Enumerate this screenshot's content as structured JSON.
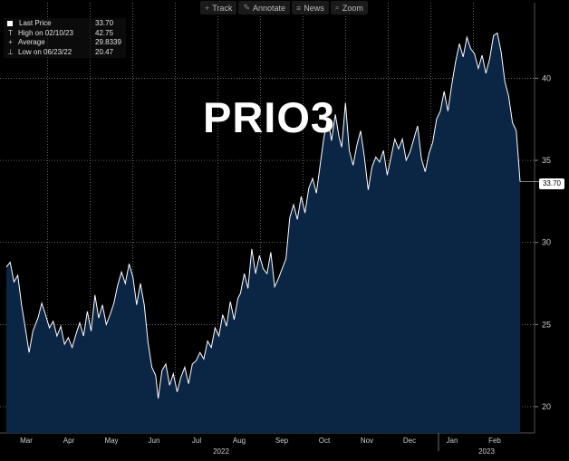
{
  "toolbar": {
    "items": [
      {
        "label": "Track",
        "icon": "crosshair-icon"
      },
      {
        "label": "Annotate",
        "icon": "pencil-icon"
      },
      {
        "label": "News",
        "icon": "news-icon"
      },
      {
        "label": "Zoom",
        "icon": "magnifier-icon"
      }
    ]
  },
  "legend": {
    "rows": [
      {
        "label": "Last Price",
        "value": "33.70",
        "icon": "square"
      },
      {
        "label": "High on 02/10/23",
        "value": "42.75",
        "icon": "T"
      },
      {
        "label": "Average",
        "value": "29.8339",
        "icon": "+"
      },
      {
        "label": "Low on 06/23/22",
        "value": "20.47",
        "icon": "⊥"
      }
    ]
  },
  "last_badge": "33.70",
  "chart_data": {
    "type": "area",
    "title": "PRIO3",
    "xlabel": "",
    "ylabel": "",
    "x_ticks": [
      "Mar",
      "Apr",
      "May",
      "Jun",
      "Jul",
      "Aug",
      "Sep",
      "Oct",
      "Nov",
      "Dec",
      "Jan",
      "Feb"
    ],
    "x_years": [
      "2022",
      "2023"
    ],
    "y_ticks": [
      20,
      25,
      30,
      35,
      40
    ],
    "ylim": [
      18.4,
      44.6
    ],
    "grid": true,
    "colors": {
      "line": "#ffffff",
      "fill": "#0b2545"
    },
    "series": [
      {
        "values": [
          [
            0,
            28.5
          ],
          [
            0.3,
            28.8
          ],
          [
            0.6,
            27.6
          ],
          [
            0.9,
            28.0
          ],
          [
            1.2,
            26.2
          ],
          [
            1.5,
            24.8
          ],
          [
            1.8,
            23.3
          ],
          [
            2.1,
            24.6
          ],
          [
            2.5,
            25.4
          ],
          [
            2.8,
            26.3
          ],
          [
            3.1,
            25.6
          ],
          [
            3.4,
            24.8
          ],
          [
            3.7,
            25.2
          ],
          [
            4.0,
            24.3
          ],
          [
            4.3,
            24.9
          ],
          [
            4.6,
            23.8
          ],
          [
            4.9,
            24.2
          ],
          [
            5.2,
            23.6
          ],
          [
            5.5,
            24.4
          ],
          [
            5.8,
            25.1
          ],
          [
            6.1,
            24.3
          ],
          [
            6.4,
            25.8
          ],
          [
            6.7,
            24.6
          ],
          [
            7.0,
            26.8
          ],
          [
            7.3,
            25.4
          ],
          [
            7.6,
            26.2
          ],
          [
            7.9,
            25.0
          ],
          [
            8.2,
            25.6
          ],
          [
            8.5,
            26.3
          ],
          [
            8.8,
            27.4
          ],
          [
            9.1,
            28.2
          ],
          [
            9.4,
            27.5
          ],
          [
            9.7,
            28.7
          ],
          [
            10.0,
            27.9
          ],
          [
            10.3,
            26.2
          ],
          [
            10.6,
            27.5
          ],
          [
            10.9,
            26.2
          ],
          [
            11.2,
            23.9
          ],
          [
            11.5,
            22.4
          ],
          [
            11.8,
            21.9
          ],
          [
            12.0,
            20.5
          ],
          [
            12.3,
            22.2
          ],
          [
            12.6,
            22.6
          ],
          [
            12.9,
            21.3
          ],
          [
            13.2,
            22.0
          ],
          [
            13.5,
            20.9
          ],
          [
            13.8,
            21.8
          ],
          [
            14.1,
            22.4
          ],
          [
            14.4,
            21.4
          ],
          [
            14.7,
            22.6
          ],
          [
            15.0,
            22.8
          ],
          [
            15.3,
            23.3
          ],
          [
            15.6,
            22.9
          ],
          [
            15.9,
            24.0
          ],
          [
            16.2,
            23.6
          ],
          [
            16.5,
            24.8
          ],
          [
            16.8,
            24.3
          ],
          [
            17.1,
            25.6
          ],
          [
            17.4,
            24.9
          ],
          [
            17.7,
            26.4
          ],
          [
            18.0,
            25.3
          ],
          [
            18.3,
            26.6
          ],
          [
            18.5,
            26.9
          ],
          [
            18.8,
            28.1
          ],
          [
            19.1,
            27.2
          ],
          [
            19.4,
            29.6
          ],
          [
            19.7,
            28.1
          ],
          [
            20.0,
            29.2
          ],
          [
            20.3,
            28.4
          ],
          [
            20.6,
            28.1
          ],
          [
            20.9,
            29.4
          ],
          [
            21.2,
            27.3
          ],
          [
            21.5,
            27.8
          ],
          [
            21.8,
            28.4
          ],
          [
            22.1,
            29.0
          ],
          [
            22.4,
            31.5
          ],
          [
            22.7,
            32.3
          ],
          [
            23.0,
            31.4
          ],
          [
            23.3,
            32.8
          ],
          [
            23.6,
            31.8
          ],
          [
            23.9,
            33.3
          ],
          [
            24.2,
            33.9
          ],
          [
            24.5,
            33.0
          ],
          [
            24.8,
            34.7
          ],
          [
            25.1,
            36.4
          ],
          [
            25.4,
            37.6
          ],
          [
            25.7,
            36.2
          ],
          [
            26.0,
            37.8
          ],
          [
            26.3,
            36.4
          ],
          [
            26.5,
            35.8
          ],
          [
            26.8,
            38.5
          ],
          [
            27.1,
            35.6
          ],
          [
            27.4,
            34.7
          ],
          [
            27.7,
            35.9
          ],
          [
            28.0,
            36.8
          ],
          [
            28.3,
            35.2
          ],
          [
            28.6,
            33.2
          ],
          [
            28.9,
            34.6
          ],
          [
            29.2,
            35.2
          ],
          [
            29.5,
            34.9
          ],
          [
            29.8,
            35.6
          ],
          [
            30.1,
            34.1
          ],
          [
            30.4,
            35.2
          ],
          [
            30.7,
            36.3
          ],
          [
            31.0,
            35.7
          ],
          [
            31.3,
            36.3
          ],
          [
            31.6,
            35.0
          ],
          [
            31.9,
            35.5
          ],
          [
            32.2,
            36.3
          ],
          [
            32.5,
            37.1
          ],
          [
            32.8,
            35.1
          ],
          [
            33.1,
            34.3
          ],
          [
            33.4,
            35.4
          ],
          [
            33.7,
            36.1
          ],
          [
            34.0,
            37.5
          ],
          [
            34.3,
            38.0
          ],
          [
            34.6,
            39.2
          ],
          [
            34.9,
            38.0
          ],
          [
            35.2,
            39.6
          ],
          [
            35.5,
            41.0
          ],
          [
            35.8,
            42.1
          ],
          [
            36.1,
            41.3
          ],
          [
            36.4,
            42.5
          ],
          [
            36.7,
            41.8
          ],
          [
            37.0,
            41.5
          ],
          [
            37.3,
            40.6
          ],
          [
            37.6,
            41.4
          ],
          [
            37.9,
            40.3
          ],
          [
            38.2,
            41.2
          ],
          [
            38.5,
            42.6
          ],
          [
            38.8,
            42.75
          ],
          [
            39.1,
            41.6
          ],
          [
            39.4,
            39.8
          ],
          [
            39.7,
            38.9
          ],
          [
            40.0,
            37.3
          ],
          [
            40.3,
            36.8
          ],
          [
            40.6,
            33.7
          ]
        ]
      }
    ]
  }
}
